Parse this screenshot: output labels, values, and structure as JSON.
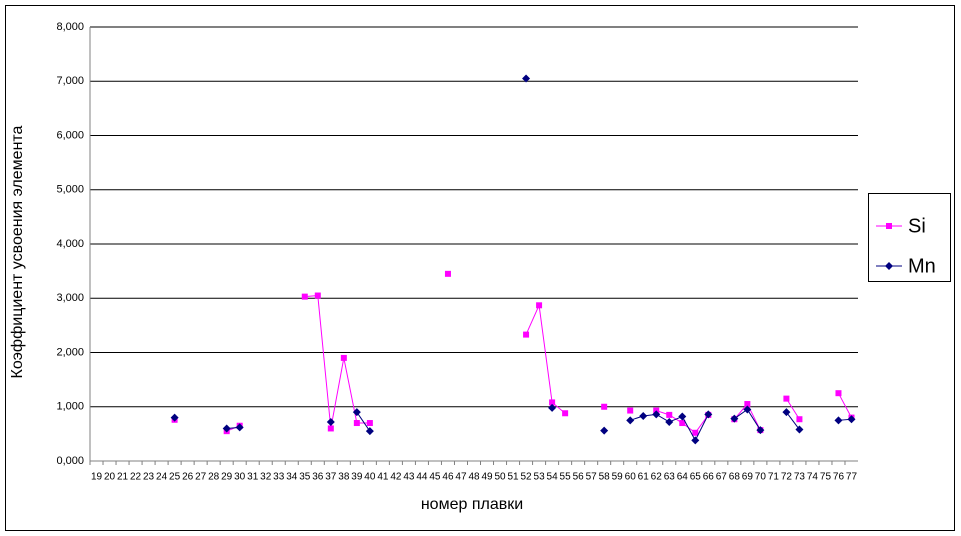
{
  "chart_data": {
    "type": "line",
    "y_label": "Коэффициент усвоения элемента",
    "x_label": "номер плавки",
    "categories": [
      19,
      20,
      21,
      22,
      23,
      24,
      25,
      26,
      27,
      28,
      29,
      30,
      31,
      32,
      33,
      34,
      35,
      36,
      37,
      38,
      39,
      40,
      41,
      42,
      43,
      44,
      45,
      46,
      47,
      48,
      49,
      50,
      51,
      52,
      53,
      54,
      55,
      56,
      57,
      58,
      59,
      60,
      61,
      62,
      63,
      64,
      65,
      66,
      67,
      68,
      69,
      70,
      71,
      72,
      73,
      74,
      75,
      76,
      77
    ],
    "series": [
      {
        "name": "Si",
        "color": "#ff00ff",
        "marker": "square",
        "values": [
          null,
          null,
          null,
          null,
          null,
          null,
          0.76,
          null,
          null,
          null,
          0.55,
          0.65,
          null,
          null,
          null,
          null,
          3.03,
          3.05,
          0.6,
          1.9,
          0.7,
          0.7,
          null,
          null,
          null,
          null,
          null,
          3.45,
          null,
          null,
          null,
          null,
          null,
          2.33,
          2.87,
          1.08,
          0.88,
          null,
          null,
          1.0,
          null,
          0.93,
          null,
          0.93,
          0.85,
          0.7,
          0.52,
          0.85,
          null,
          0.77,
          1.05,
          0.57,
          null,
          1.15,
          0.77,
          null,
          null,
          1.25,
          0.8
        ]
      },
      {
        "name": "Mn",
        "color": "#000080",
        "marker": "diamond",
        "values": [
          null,
          null,
          null,
          null,
          null,
          null,
          0.8,
          null,
          null,
          null,
          0.6,
          0.62,
          null,
          null,
          null,
          null,
          null,
          null,
          0.72,
          null,
          0.9,
          0.55,
          null,
          null,
          null,
          null,
          null,
          null,
          null,
          null,
          null,
          null,
          null,
          7.05,
          null,
          0.98,
          null,
          null,
          null,
          0.56,
          null,
          0.75,
          0.83,
          0.86,
          0.72,
          0.82,
          0.38,
          0.86,
          null,
          0.78,
          0.95,
          0.57,
          null,
          0.9,
          0.58,
          null,
          null,
          0.75,
          0.77
        ]
      }
    ],
    "ylim": [
      0,
      8
    ],
    "yticks": [
      {
        "value": 0,
        "label": "0,000"
      },
      {
        "value": 1,
        "label": "1,000"
      },
      {
        "value": 2,
        "label": "2,000"
      },
      {
        "value": 3,
        "label": "3,000"
      },
      {
        "value": 4,
        "label": "4,000"
      },
      {
        "value": 5,
        "label": "5,000"
      },
      {
        "value": 6,
        "label": "6,000"
      },
      {
        "value": 7,
        "label": "7,000"
      },
      {
        "value": 8,
        "label": "8,000"
      }
    ],
    "grid": true,
    "legend": "right"
  }
}
